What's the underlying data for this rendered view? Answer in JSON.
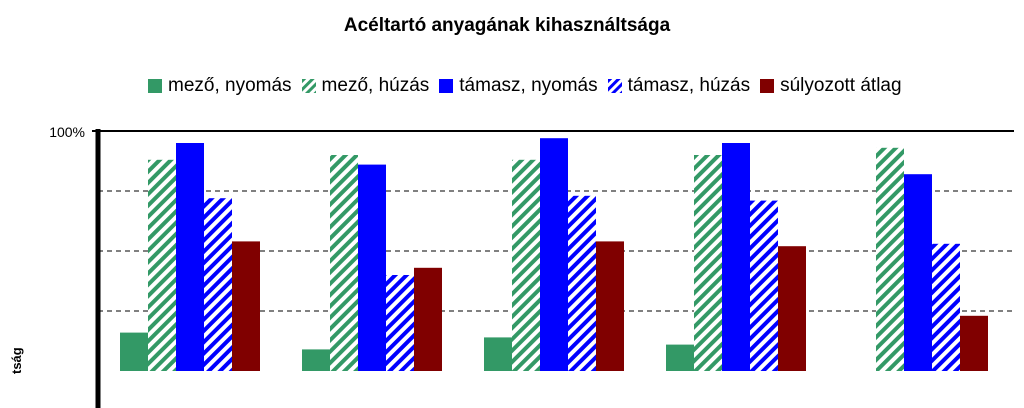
{
  "chart_data": {
    "type": "bar",
    "title": "Acéltartó anyagának kihasználtsága",
    "ylabel": "tság",
    "ylim": [
      0,
      100
    ],
    "y_ticks_visible": [
      "100%"
    ],
    "grid": "dashed horizontal",
    "legend_position": "top",
    "categories": [
      "",
      "",
      "",
      "",
      ""
    ],
    "series": [
      {
        "name": "mező, nyomás",
        "color": "#339966",
        "pattern": "solid",
        "values": [
          16,
          9,
          14,
          11,
          null
        ]
      },
      {
        "name": "mező, húzás",
        "color": "#339966",
        "pattern": "hatch",
        "values": [
          88,
          90,
          88,
          90,
          93
        ]
      },
      {
        "name": "támasz, nyomás",
        "color": "#0000FF",
        "pattern": "solid",
        "values": [
          95,
          86,
          97,
          95,
          82
        ]
      },
      {
        "name": "támasz, húzás",
        "color": "#0000FF",
        "pattern": "hatch",
        "values": [
          72,
          40,
          73,
          71,
          53
        ]
      },
      {
        "name": "súlyozott átlag",
        "color": "#800000",
        "pattern": "solid",
        "values": [
          54,
          43,
          54,
          52,
          23
        ]
      }
    ]
  }
}
